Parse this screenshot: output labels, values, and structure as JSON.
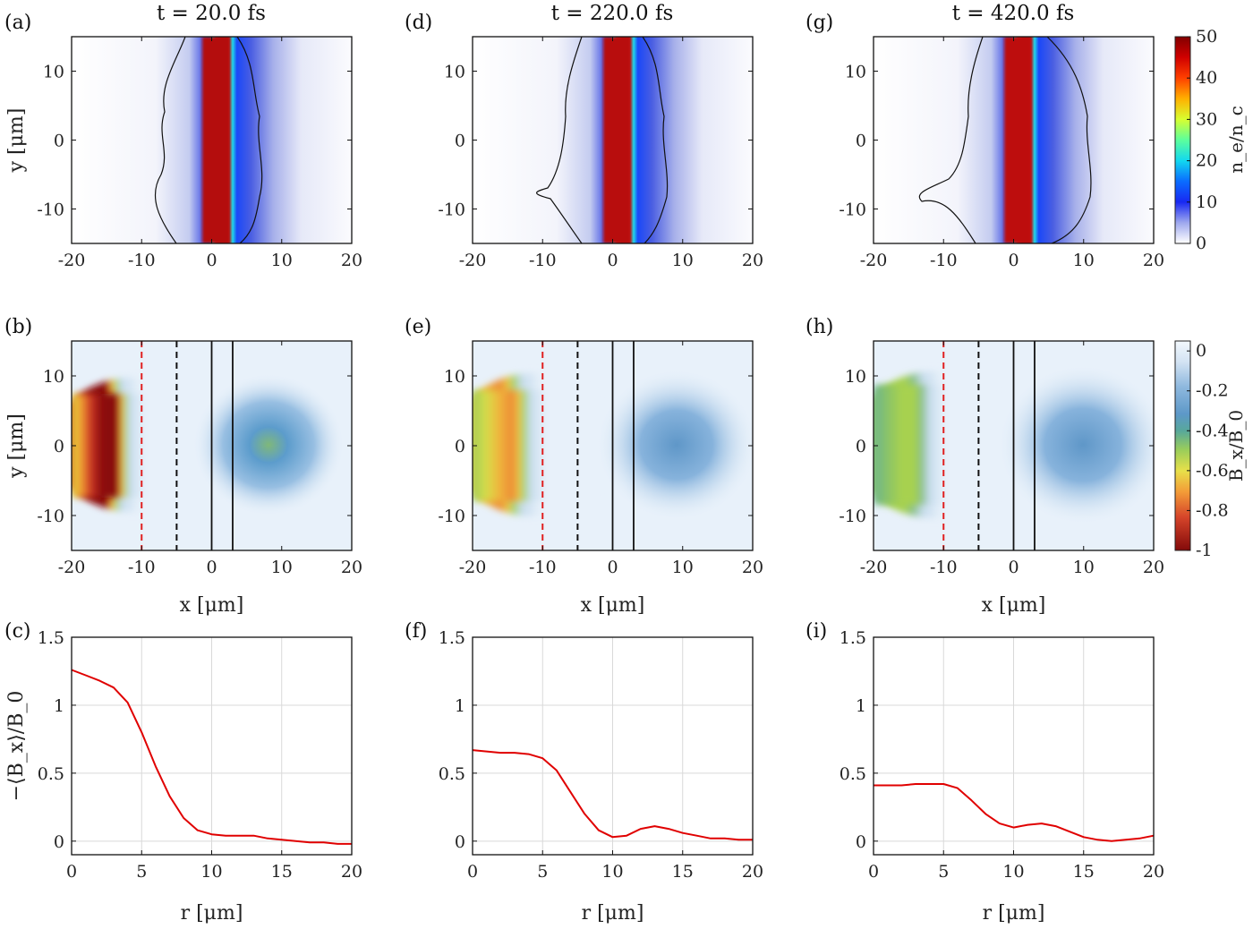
{
  "titles": [
    "t = 20.0 fs",
    "t = 220.0 fs",
    "t = 420.0 fs"
  ],
  "panel_labels": {
    "density": [
      "(a)",
      "(d)",
      "(g)"
    ],
    "field": [
      "(b)",
      "(e)",
      "(h)"
    ],
    "profile": [
      "(c)",
      "(f)",
      "(i)"
    ]
  },
  "colors": {
    "density_cmap": [
      "#ffffff",
      "#dfe4f7",
      "#8896e8",
      "#2430e8",
      "#0a54ff",
      "#13d6f0",
      "#60ff9a",
      "#f0f020",
      "#ff9a00",
      "#ff2a00",
      "#a00000"
    ],
    "field_cmap": [
      "#f3f8fd",
      "#cfe0f2",
      "#8fb9de",
      "#5f98cd",
      "#4a8fb8",
      "#6bb58a",
      "#a6d157",
      "#e6e34a",
      "#f5a03a",
      "#d9472b",
      "#8a0b0b"
    ],
    "profile_line": "#e00000",
    "red_dashed": "#e02020",
    "black_lines": "#111111",
    "contour": "#111111"
  },
  "chart_data": [
    {
      "type": "heatmap",
      "panel": "(a)",
      "title": "t = 20.0 fs",
      "xlabel": "",
      "ylabel": "y [μm]",
      "xlim": [
        -20,
        20
      ],
      "ylim": [
        -15,
        15
      ],
      "xticks": [
        "-20",
        "-10",
        "0",
        "10",
        "20"
      ],
      "yticks": [
        "10",
        "0",
        "-10"
      ],
      "quantity": "n_e/n_c",
      "clim": [
        0,
        50
      ],
      "foil_core_x": [
        -1,
        2.5
      ],
      "foil_peak": 50,
      "contour_x_left": -7.5,
      "contour_x_right": 6.5
    },
    {
      "type": "heatmap",
      "panel": "(d)",
      "title": "t = 220.0 fs",
      "xlabel": "",
      "ylabel": "",
      "xlim": [
        -20,
        20
      ],
      "ylim": [
        -15,
        15
      ],
      "xticks": [
        "-20",
        "-10",
        "0",
        "10",
        "20"
      ],
      "yticks": [
        "10",
        "0",
        "-10"
      ],
      "quantity": "n_e/n_c",
      "clim": [
        0,
        50
      ],
      "foil_core_x": [
        -1,
        2.5
      ],
      "foil_peak": 48,
      "contour_x_left": -7,
      "contour_x_right": 7
    },
    {
      "type": "heatmap",
      "panel": "(g)",
      "title": "t = 420.0 fs",
      "xlabel": "",
      "ylabel": "",
      "xlim": [
        -20,
        20
      ],
      "ylim": [
        -15,
        15
      ],
      "xticks": [
        "-20",
        "-10",
        "0",
        "10",
        "20"
      ],
      "yticks": [
        "10",
        "0",
        "-10"
      ],
      "quantity": "n_e/n_c",
      "clim": [
        0,
        50
      ],
      "foil_core_x": [
        -1,
        2.5
      ],
      "foil_peak": 46,
      "contour_x_left": -8,
      "contour_x_right": 10
    },
    {
      "type": "heatmap",
      "panel": "(b)",
      "xlabel": "x [μm]",
      "ylabel": "y [μm]",
      "xlim": [
        -20,
        20
      ],
      "ylim": [
        -15,
        15
      ],
      "xticks": [
        "-20",
        "-10",
        "0",
        "10",
        "20"
      ],
      "yticks": [
        "10",
        "0",
        "-10"
      ],
      "quantity": "B_x/B_0",
      "clim": [
        -1,
        0.05
      ],
      "core_value": -1.0,
      "right_lobe_value": -0.35,
      "red_dashed_x": -10,
      "black_dashed_x": -5,
      "solid_x": [
        0,
        3
      ]
    },
    {
      "type": "heatmap",
      "panel": "(e)",
      "xlabel": "x [μm]",
      "ylabel": "",
      "xlim": [
        -20,
        20
      ],
      "ylim": [
        -15,
        15
      ],
      "xticks": [
        "-20",
        "-10",
        "0",
        "10",
        "20"
      ],
      "yticks": [
        "10",
        "0",
        "-10"
      ],
      "quantity": "B_x/B_0",
      "clim": [
        -1,
        0.05
      ],
      "core_value": -0.62,
      "right_lobe_value": -0.25,
      "red_dashed_x": -10,
      "black_dashed_x": -5,
      "solid_x": [
        0,
        3
      ]
    },
    {
      "type": "heatmap",
      "panel": "(h)",
      "xlabel": "x [μm]",
      "ylabel": "",
      "xlim": [
        -20,
        20
      ],
      "ylim": [
        -15,
        15
      ],
      "xticks": [
        "-20",
        "-10",
        "0",
        "10",
        "20"
      ],
      "yticks": [
        "10",
        "0",
        "-10"
      ],
      "quantity": "B_x/B_0",
      "clim": [
        -1,
        0.05
      ],
      "core_value": -0.42,
      "right_lobe_value": -0.22,
      "red_dashed_x": -10,
      "black_dashed_x": -5,
      "solid_x": [
        0,
        3
      ]
    },
    {
      "type": "line",
      "panel": "(c)",
      "xlabel": "r [μm]",
      "ylabel": "−⟨B_x⟩/B_0",
      "xlim": [
        0,
        20
      ],
      "ylim": [
        -0.1,
        1.5
      ],
      "grid": true,
      "xticks": [
        "0",
        "5",
        "10",
        "15",
        "20"
      ],
      "yticks": [
        "0",
        "0.5",
        "1",
        "1.5"
      ],
      "x": [
        0,
        1,
        2,
        3,
        4,
        5,
        6,
        7,
        8,
        9,
        10,
        11,
        12,
        13,
        14,
        15,
        16,
        17,
        18,
        19,
        20
      ],
      "y": [
        1.26,
        1.22,
        1.18,
        1.13,
        1.02,
        0.8,
        0.55,
        0.33,
        0.17,
        0.08,
        0.05,
        0.04,
        0.04,
        0.04,
        0.02,
        0.01,
        0.0,
        -0.01,
        -0.01,
        -0.02,
        -0.02
      ]
    },
    {
      "type": "line",
      "panel": "(f)",
      "xlabel": "r [μm]",
      "ylabel": "",
      "xlim": [
        0,
        20
      ],
      "ylim": [
        -0.1,
        1.5
      ],
      "grid": true,
      "xticks": [
        "0",
        "5",
        "10",
        "15",
        "20"
      ],
      "yticks": [
        "0",
        "0.5",
        "1",
        "1.5"
      ],
      "x": [
        0,
        1,
        2,
        3,
        4,
        5,
        6,
        7,
        8,
        9,
        10,
        11,
        12,
        13,
        14,
        15,
        16,
        17,
        18,
        19,
        20
      ],
      "y": [
        0.67,
        0.66,
        0.65,
        0.65,
        0.64,
        0.61,
        0.52,
        0.36,
        0.2,
        0.08,
        0.03,
        0.04,
        0.09,
        0.11,
        0.09,
        0.06,
        0.04,
        0.02,
        0.02,
        0.01,
        0.01
      ]
    },
    {
      "type": "line",
      "panel": "(i)",
      "xlabel": "r [μm]",
      "ylabel": "",
      "xlim": [
        0,
        20
      ],
      "ylim": [
        -0.1,
        1.5
      ],
      "grid": true,
      "xticks": [
        "0",
        "5",
        "10",
        "15",
        "20"
      ],
      "yticks": [
        "0",
        "0.5",
        "1",
        "1.5"
      ],
      "x": [
        0,
        1,
        2,
        3,
        4,
        5,
        6,
        7,
        8,
        9,
        10,
        11,
        12,
        13,
        14,
        15,
        16,
        17,
        18,
        19,
        20
      ],
      "y": [
        0.41,
        0.41,
        0.41,
        0.42,
        0.42,
        0.42,
        0.39,
        0.3,
        0.2,
        0.13,
        0.1,
        0.12,
        0.13,
        0.11,
        0.07,
        0.03,
        0.01,
        0.0,
        0.01,
        0.02,
        0.04
      ]
    }
  ],
  "colorbars": [
    {
      "label": "n_e/n_c",
      "ticks": [
        "50",
        "40",
        "30",
        "20",
        "10",
        "0"
      ],
      "tick_values": [
        50,
        40,
        30,
        20,
        10,
        0
      ],
      "clim": [
        0,
        50
      ]
    },
    {
      "label": "B_x/B_0",
      "ticks": [
        "0",
        "-0.2",
        "-0.4",
        "-0.6",
        "-0.8",
        "-1"
      ],
      "tick_values": [
        0,
        -0.2,
        -0.4,
        -0.6,
        -0.8,
        -1
      ],
      "clim": [
        -1,
        0.05
      ]
    }
  ]
}
